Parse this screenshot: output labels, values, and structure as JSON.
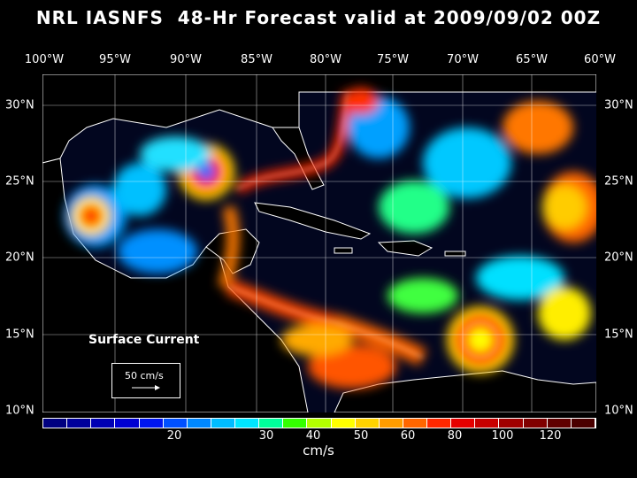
{
  "title": "NRL IASNFS  48-Hr Forecast valid at 2009/09/02 00Z",
  "longitude_labels": [
    "100°W",
    "95°W",
    "90°W",
    "85°W",
    "80°W",
    "75°W",
    "70°W",
    "65°W",
    "60°W"
  ],
  "latitude_labels": [
    "30°N",
    "25°N",
    "20°N",
    "15°N",
    "10°N"
  ],
  "map_overlay": {
    "label": "Surface Current",
    "reference_vector_label": "50 cm/s"
  },
  "colorbar": {
    "tick_labels": [
      "20",
      "30",
      "40",
      "50",
      "60",
      "80",
      "100",
      "120"
    ],
    "units": "cm/s",
    "colors": [
      "#000080",
      "#00009a",
      "#0000b4",
      "#0000d2",
      "#0016f0",
      "#0050ff",
      "#0088ff",
      "#00bcff",
      "#00e6ff",
      "#00ff9a",
      "#33ff00",
      "#b4ff00",
      "#ffff00",
      "#ffd200",
      "#ff9c00",
      "#ff6600",
      "#ff2800",
      "#e60000",
      "#c80000",
      "#a00000",
      "#800000",
      "#600000",
      "#4a0000"
    ]
  },
  "colors": {
    "background": "#000000",
    "ocean_low": "#02061f",
    "coastline": "#ffffff"
  }
}
